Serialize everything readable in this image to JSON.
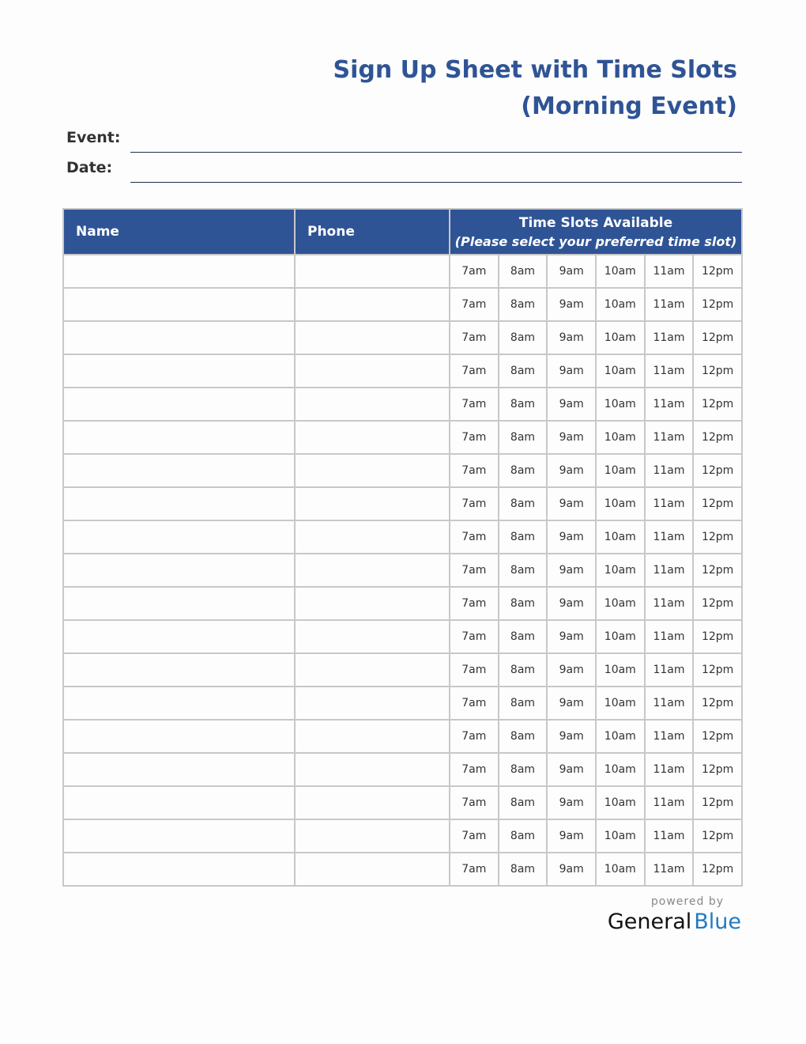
{
  "title": {
    "line1": "Sign Up Sheet with Time Slots",
    "line2": "(Morning Event)"
  },
  "fields": {
    "event_label": "Event:",
    "date_label": "Date:"
  },
  "table": {
    "headers": {
      "name": "Name",
      "phone": "Phone",
      "slots": "Time Slots Available",
      "slots_sub": "(Please select your preferred time slot)"
    },
    "slot_labels": [
      "7am",
      "8am",
      "9am",
      "10am",
      "11am",
      "12pm"
    ],
    "rows": [
      {
        "name": "",
        "phone": ""
      },
      {
        "name": "",
        "phone": ""
      },
      {
        "name": "",
        "phone": ""
      },
      {
        "name": "",
        "phone": ""
      },
      {
        "name": "",
        "phone": ""
      },
      {
        "name": "",
        "phone": ""
      },
      {
        "name": "",
        "phone": ""
      },
      {
        "name": "",
        "phone": ""
      },
      {
        "name": "",
        "phone": ""
      },
      {
        "name": "",
        "phone": ""
      },
      {
        "name": "",
        "phone": ""
      },
      {
        "name": "",
        "phone": ""
      },
      {
        "name": "",
        "phone": ""
      },
      {
        "name": "",
        "phone": ""
      },
      {
        "name": "",
        "phone": ""
      },
      {
        "name": "",
        "phone": ""
      },
      {
        "name": "",
        "phone": ""
      },
      {
        "name": "",
        "phone": ""
      },
      {
        "name": "",
        "phone": ""
      }
    ]
  },
  "footer": {
    "powered_by": "powered by",
    "brand_part1": "General",
    "brand_part2": "Blue"
  },
  "colors": {
    "header_bg": "#2f5496",
    "title": "#2f5496",
    "brand_blue": "#1f7bc4"
  }
}
